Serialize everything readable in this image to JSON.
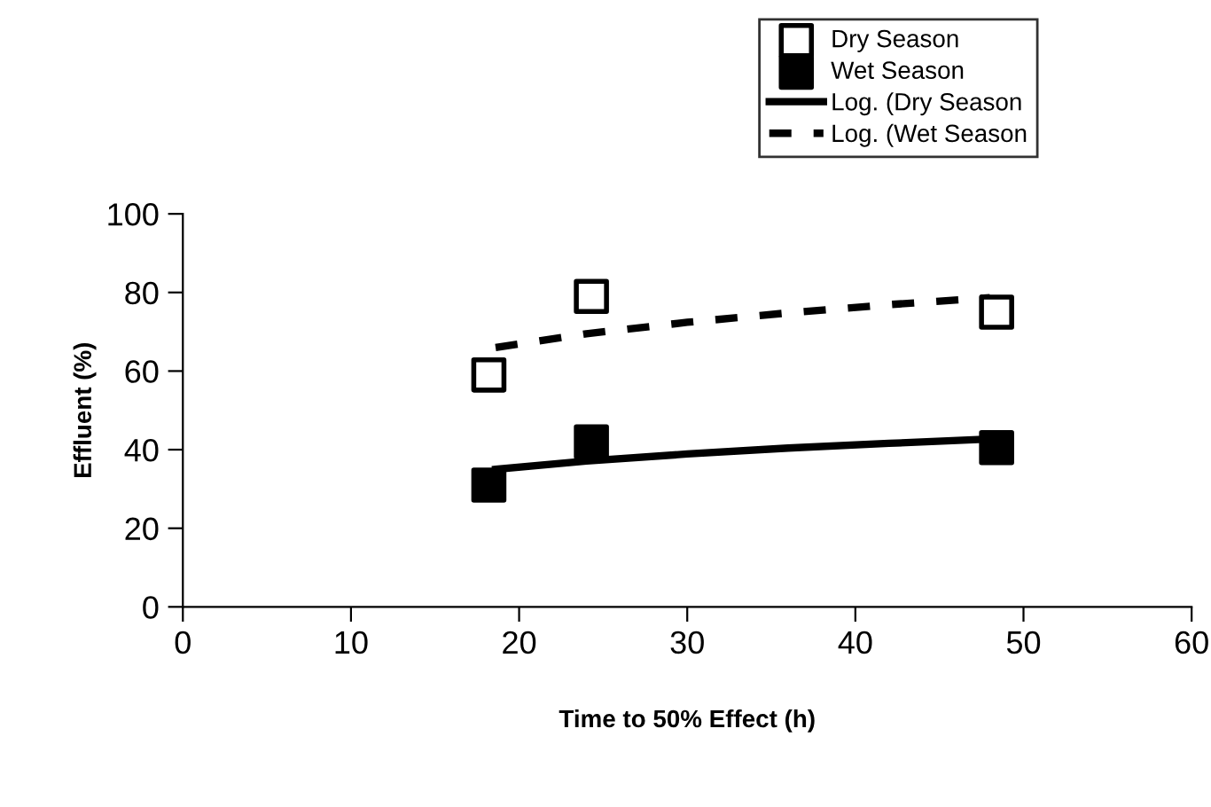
{
  "chart_data": {
    "type": "scatter",
    "xlabel": "Time to 50% Effect (h)",
    "ylabel": "Effluent (%)",
    "xlim": [
      0,
      60
    ],
    "xticks": [
      0,
      10,
      20,
      30,
      40,
      50,
      60
    ],
    "ylim": [
      0,
      100
    ],
    "yticks": [
      0,
      20,
      40,
      60,
      80,
      100
    ],
    "grid": false,
    "legend": "top right",
    "marker": "square",
    "series": [
      {
        "name": "Dry Season",
        "color": "#ffffff",
        "x": [
          18.2,
          24.3,
          48.4
        ],
        "values": [
          59,
          79,
          75
        ]
      },
      {
        "name": "Wet Season",
        "color": "#000000",
        "x": [
          18.2,
          24.3,
          48.4
        ],
        "values": [
          31,
          42,
          40.5
        ]
      },
      {
        "name": "Log. (Dry Season",
        "type": "line",
        "marker": "none",
        "line_style": "solid",
        "color": "#000000",
        "x": [
          18.6,
          24,
          30,
          36,
          42,
          48
        ],
        "values": [
          35,
          37.1,
          38.9,
          40.4,
          41.6,
          42.7
        ]
      },
      {
        "name": "Log. (Wet Season",
        "type": "line",
        "marker": "none",
        "line_style": "dashed",
        "color": "#000000",
        "x": [
          18.6,
          24,
          30,
          36,
          42,
          48
        ],
        "values": [
          66,
          69.5,
          72.4,
          74.8,
          76.9,
          78.7
        ]
      }
    ]
  }
}
